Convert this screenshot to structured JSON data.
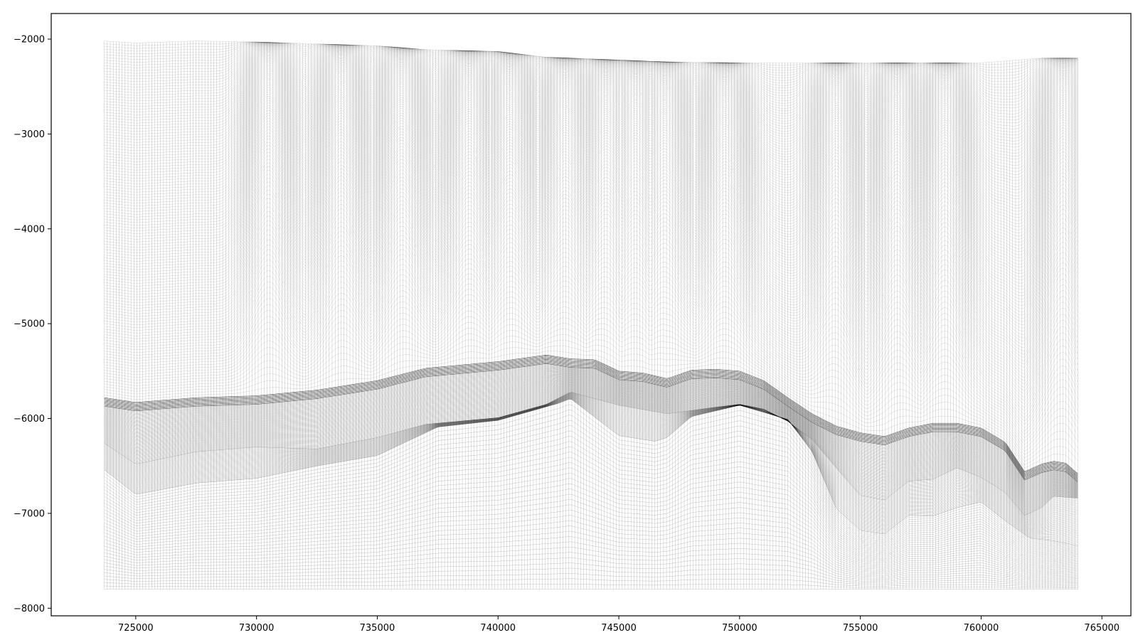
{
  "chart_data": {
    "type": "line",
    "title": "",
    "xlabel": "",
    "ylabel": "",
    "xlim": [
      721500,
      766200
    ],
    "ylim": [
      -8080,
      -1730
    ],
    "x_ticks": [
      725000,
      730000,
      735000,
      740000,
      745000,
      750000,
      755000,
      760000,
      765000
    ],
    "x_tick_labels": [
      "725000",
      "730000",
      "735000",
      "740000",
      "745000",
      "750000",
      "755000",
      "760000",
      "765000"
    ],
    "y_ticks": [
      -2000,
      -3000,
      -4000,
      -5000,
      -6000,
      -7000,
      -8000
    ],
    "y_tick_labels": [
      "−2000",
      "−3000",
      "−4000",
      "−5000",
      "−6000",
      "−7000",
      "−8000"
    ],
    "grid": false,
    "legend": "none",
    "line_color": "#000000",
    "description_layers": "grid of horizontal layer lines and vertical columns (2D mesh cross-section)",
    "column_x": {
      "start": 723700,
      "end": 764000,
      "count": 330
    },
    "surfaces": {
      "top": {
        "x": [
          723700,
          725000,
          727500,
          730000,
          735000,
          737000,
          740000,
          742000,
          745000,
          747000,
          750000,
          752500,
          755000,
          757500,
          760000,
          762500,
          764000
        ],
        "y": [
          -2020,
          -2040,
          -2020,
          -2030,
          -2070,
          -2110,
          -2130,
          -2190,
          -2220,
          -2240,
          -2250,
          -2250,
          -2250,
          -2250,
          -2250,
          -2200,
          -2200
        ]
      },
      "upper_boundary": {
        "x": [
          723700,
          725000,
          727500,
          730000,
          732500,
          735000,
          737000,
          740000,
          742000,
          743000,
          744000,
          745000,
          746000,
          747000,
          748000,
          749000,
          750000,
          751000,
          752000,
          753000,
          754000,
          755000,
          756000,
          757000,
          758000,
          759000,
          760000,
          761000,
          761800,
          762500,
          763000,
          763500,
          764000
        ],
        "y": [
          -5780,
          -5830,
          -5780,
          -5760,
          -5700,
          -5600,
          -5470,
          -5400,
          -5330,
          -5370,
          -5380,
          -5500,
          -5520,
          -5580,
          -5490,
          -5480,
          -5500,
          -5600,
          -5780,
          -5950,
          -6080,
          -6150,
          -6190,
          -6100,
          -6050,
          -6050,
          -6100,
          -6250,
          -6560,
          -6480,
          -6450,
          -6470,
          -6580
        ]
      },
      "middle_boundary": {
        "x": [
          723700,
          725000,
          727500,
          730000,
          732500,
          735000,
          737000,
          740000,
          742000,
          743000,
          745000,
          747000,
          749000,
          750000,
          751000,
          752000,
          753000,
          754000,
          755000,
          756000,
          757000,
          758000,
          759000,
          760000,
          761000,
          761800,
          762500,
          763000,
          764000
        ],
        "y": [
          -6260,
          -6480,
          -6350,
          -6300,
          -6320,
          -6200,
          -6060,
          -5990,
          -5850,
          -5720,
          -5860,
          -5950,
          -5880,
          -5850,
          -5900,
          -6030,
          -6220,
          -6520,
          -6810,
          -6860,
          -6660,
          -6640,
          -6520,
          -6620,
          -6780,
          -7020,
          -6940,
          -6820,
          -6840
        ]
      },
      "lower_boundary": {
        "x": [
          723700,
          725000,
          727500,
          730000,
          732500,
          735000,
          737500,
          740000,
          742500,
          743000,
          745000,
          746500,
          747000,
          748000,
          750000,
          752000,
          753000,
          754000,
          755000,
          756000,
          757000,
          758000,
          759000,
          760000,
          761000,
          762000,
          763000,
          764000
        ],
        "y": [
          -6540,
          -6800,
          -6680,
          -6630,
          -6500,
          -6390,
          -6090,
          -6020,
          -5840,
          -5790,
          -6180,
          -6240,
          -6200,
          -5980,
          -5860,
          -6010,
          -6350,
          -6950,
          -7180,
          -7220,
          -7020,
          -7030,
          -6940,
          -6880,
          -7080,
          -7260,
          -7290,
          -7340
        ]
      },
      "bottom": {
        "y": -7800
      }
    },
    "upper_layer_pinches": [
      {
        "x": 730500,
        "y": -3350
      },
      {
        "x": 733500,
        "y": -3150
      },
      {
        "x": 736000,
        "y": -3200
      },
      {
        "x": 738800,
        "y": -3050
      },
      {
        "x": 740500,
        "y": -3150
      },
      {
        "x": 742800,
        "y": -3850
      },
      {
        "x": 744500,
        "y": -3250
      },
      {
        "x": 745700,
        "y": -3200
      },
      {
        "x": 746900,
        "y": -2650
      },
      {
        "x": 749400,
        "y": -4150
      },
      {
        "x": 754000,
        "y": -3100
      },
      {
        "x": 756500,
        "y": -3350
      },
      {
        "x": 758500,
        "y": -3250
      },
      {
        "x": 763400,
        "y": -2920
      }
    ]
  }
}
